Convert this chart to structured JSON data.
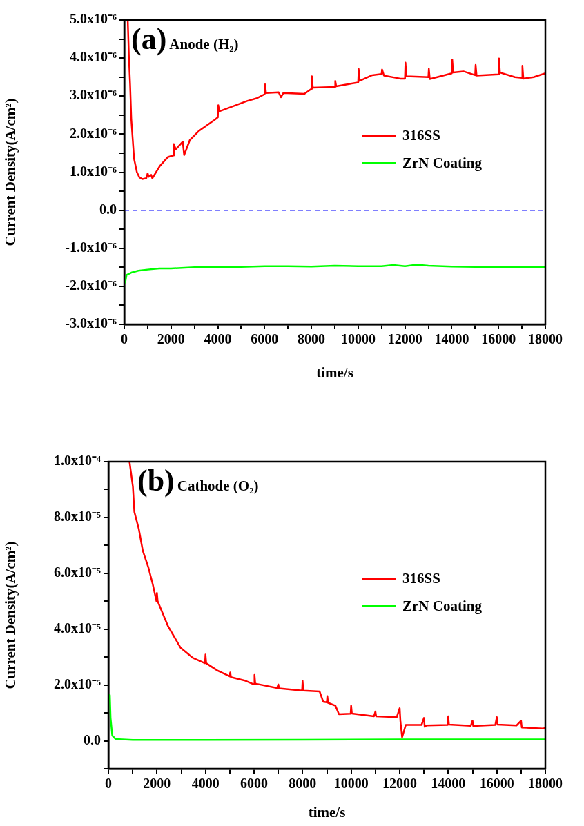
{
  "chart_data": [
    {
      "type": "line",
      "xlabel": "time/s",
      "ylabel": "Current Density(A/cm²)",
      "annotations": [
        "(a)",
        "Anode (H₂)"
      ],
      "xlim": [
        0,
        18000
      ],
      "ylim": [
        -3e-06,
        5e-06
      ],
      "xticks": [
        0,
        {
          "value": 1000,
          "label": null
        },
        2000,
        {
          "value": 3000,
          "label": null
        },
        4000,
        {
          "value": 5000,
          "label": null
        },
        6000,
        {
          "value": 7000,
          "label": null
        },
        8000,
        {
          "value": 9000,
          "label": null
        },
        10000,
        {
          "value": 11000,
          "label": null
        },
        12000,
        {
          "value": 13000,
          "label": null
        },
        14000,
        {
          "value": 15000,
          "label": null
        },
        16000,
        {
          "value": 17000,
          "label": null
        },
        18000
      ],
      "yticks": [
        {
          "value": -3e-06,
          "label": "-3.0x10⁻⁶"
        },
        {
          "value": -2.5e-06,
          "label": null
        },
        {
          "value": -2e-06,
          "label": "-2.0x10⁻⁶"
        },
        {
          "value": -1.5e-06,
          "label": null
        },
        {
          "value": -1e-06,
          "label": "-1.0x10⁻⁶"
        },
        {
          "value": -5e-07,
          "label": null
        },
        {
          "value": 0,
          "label": "0.0"
        },
        {
          "value": 5e-07,
          "label": null
        },
        {
          "value": 1e-06,
          "label": "1.0x10⁻⁶"
        },
        {
          "value": 1.5e-06,
          "label": null
        },
        {
          "value": 2e-06,
          "label": "2.0x10⁻⁶"
        },
        {
          "value": 2.5e-06,
          "label": null
        },
        {
          "value": 3e-06,
          "label": "3.0x10⁻⁶"
        },
        {
          "value": 3.5e-06,
          "label": null
        },
        {
          "value": 4e-06,
          "label": "4.0x10⁻⁶"
        },
        {
          "value": 4.5e-06,
          "label": null
        },
        {
          "value": 5e-06,
          "label": "5.0x10⁻⁶"
        }
      ],
      "grid": false,
      "legend": "right",
      "marker": "none",
      "line_style": "solid",
      "ref_lines": [
        {
          "axis": "y",
          "value": 0,
          "color": "#0000ff",
          "line_style": "dashed"
        }
      ],
      "series": [
        {
          "name": "316SS",
          "color": "#ff0000",
          "x": [
            150,
            200,
            250,
            300,
            420,
            540,
            650,
            770,
            940,
            1000,
            1050,
            1150,
            1200,
            1520,
            1870,
            2100,
            2120,
            2200,
            2500,
            2560,
            2800,
            3200,
            3850,
            4000,
            4020,
            4060,
            5250,
            5650,
            6000,
            6020,
            6060,
            6600,
            6700,
            6800,
            7700,
            8000,
            8020,
            8060,
            9000,
            9020,
            9060,
            9900,
            10000,
            10020,
            10060,
            10600,
            11000,
            11020,
            11100,
            11800,
            12000,
            12020,
            12060,
            13000,
            13020,
            13060,
            14000,
            14020,
            14060,
            14500,
            15000,
            15020,
            15060,
            16000,
            16020,
            16060,
            16700,
            17000,
            17020,
            17060,
            17500,
            18000
          ],
          "values": [
            5e-06,
            4e-06,
            3.3e-06,
            2.4e-06,
            1.35e-06,
            1e-06,
            8.6e-07,
            8.2e-07,
            8.4e-07,
            9.7e-07,
            8.8e-07,
            9.3e-07,
            8.4e-07,
            1.16e-06,
            1.4e-06,
            1.44e-06,
            1.74e-06,
            1.6e-06,
            1.8e-06,
            1.45e-06,
            1.84e-06,
            2.09e-06,
            2.37e-06,
            2.44e-06,
            2.76e-06,
            2.6e-06,
            2.87e-06,
            2.94e-06,
            3.05e-06,
            3.31e-06,
            3.08e-06,
            3.1e-06,
            2.97e-06,
            3.08e-06,
            3.06e-06,
            3.19e-06,
            3.52e-06,
            3.22e-06,
            3.24e-06,
            3.4e-06,
            3.26e-06,
            3.35e-06,
            3.36e-06,
            3.71e-06,
            3.4e-06,
            3.55e-06,
            3.58e-06,
            3.7e-06,
            3.54e-06,
            3.46e-06,
            3.46e-06,
            3.88e-06,
            3.52e-06,
            3.5e-06,
            3.72e-06,
            3.45e-06,
            3.6e-06,
            3.96e-06,
            3.62e-06,
            3.65e-06,
            3.55e-06,
            3.82e-06,
            3.54e-06,
            3.57e-06,
            3.99e-06,
            3.62e-06,
            3.5e-06,
            3.48e-06,
            3.8e-06,
            3.46e-06,
            3.5e-06,
            3.6e-06
          ]
        },
        {
          "name": "ZrN Coating",
          "color": "#00ff00",
          "x": [
            40,
            100,
            300,
            600,
            1000,
            1500,
            2000,
            3000,
            4000,
            5000,
            6000,
            7000,
            8000,
            9000,
            10000,
            11000,
            11500,
            12000,
            12500,
            13000,
            14000,
            15000,
            16000,
            17000,
            18000
          ],
          "values": [
            -1.9e-06,
            -1.7e-06,
            -1.64e-06,
            -1.59e-06,
            -1.56e-06,
            -1.53e-06,
            -1.53e-06,
            -1.5e-06,
            -1.5e-06,
            -1.49e-06,
            -1.47e-06,
            -1.47e-06,
            -1.48e-06,
            -1.46e-06,
            -1.47e-06,
            -1.47e-06,
            -1.44e-06,
            -1.47e-06,
            -1.43e-06,
            -1.46e-06,
            -1.48e-06,
            -1.49e-06,
            -1.5e-06,
            -1.49e-06,
            -1.49e-06
          ]
        }
      ]
    },
    {
      "type": "line",
      "xlabel": "time/s",
      "ylabel": "Current Density(A/cm²)",
      "annotations": [
        "(b)",
        "Cathode (O₂)"
      ],
      "xlim": [
        0,
        18000
      ],
      "ylim": [
        -1e-05,
        0.0001
      ],
      "xticks": [
        0,
        {
          "value": 1000,
          "label": null
        },
        2000,
        {
          "value": 3000,
          "label": null
        },
        4000,
        {
          "value": 5000,
          "label": null
        },
        6000,
        {
          "value": 7000,
          "label": null
        },
        8000,
        {
          "value": 9000,
          "label": null
        },
        10000,
        {
          "value": 11000,
          "label": null
        },
        12000,
        {
          "value": 13000,
          "label": null
        },
        14000,
        {
          "value": 15000,
          "label": null
        },
        16000,
        {
          "value": 17000,
          "label": null
        },
        18000
      ],
      "yticks": [
        {
          "value": -1e-05,
          "label": null
        },
        {
          "value": 0,
          "label": "0.0"
        },
        {
          "value": 1e-05,
          "label": null
        },
        {
          "value": 2e-05,
          "label": "2.0x10⁻⁵"
        },
        {
          "value": 3e-05,
          "label": null
        },
        {
          "value": 4e-05,
          "label": "4.0x10⁻⁵"
        },
        {
          "value": 5e-05,
          "label": null
        },
        {
          "value": 6e-05,
          "label": "6.0x10⁻⁵"
        },
        {
          "value": 7e-05,
          "label": null
        },
        {
          "value": 8e-05,
          "label": "8.0x10⁻⁵"
        },
        {
          "value": 9e-05,
          "label": null
        },
        {
          "value": 0.0001,
          "label": "1.0x10⁻⁴"
        }
      ],
      "grid": false,
      "legend": "right",
      "marker": "none",
      "line_style": "solid",
      "series": [
        {
          "name": "316SS",
          "color": "#ff0000",
          "x": [
            870,
            1010,
            1070,
            1250,
            1420,
            1650,
            1830,
            1980,
            2000,
            2030,
            2460,
            2970,
            3480,
            3980,
            4000,
            4030,
            4490,
            5000,
            5020,
            5050,
            5650,
            6000,
            6020,
            6050,
            6950,
            7000,
            7030,
            7980,
            8000,
            8030,
            8700,
            8850,
            9000,
            9020,
            9050,
            9350,
            9500,
            9980,
            10000,
            10030,
            10940,
            11000,
            11030,
            11880,
            12000,
            12030,
            12100,
            12250,
            12900,
            13000,
            13030,
            13100,
            13980,
            14000,
            14030,
            14930,
            15000,
            15030,
            15940,
            16000,
            16030,
            16810,
            17000,
            17030,
            17900,
            18000
          ],
          "values": [
            0.0001,
            9.1e-05,
            8.2e-05,
            7.6e-05,
            6.8e-05,
            6.2e-05,
            5.6e-05,
            5e-05,
            5.3e-05,
            5e-05,
            4.1e-05,
            3.34e-05,
            2.97e-05,
            2.78e-05,
            3.09e-05,
            2.78e-05,
            2.52e-05,
            2.31e-05,
            2.45e-05,
            2.28e-05,
            2.15e-05,
            2.02e-05,
            2.36e-05,
            2.05e-05,
            1.89e-05,
            2.02e-05,
            1.88e-05,
            1.8e-05,
            2.15e-05,
            1.8e-05,
            1.77e-05,
            1.4e-05,
            1.38e-05,
            1.6e-05,
            1.36e-05,
            1.26e-05,
            9.5e-06,
            9.7e-06,
            1.26e-05,
            9.8e-06,
            8.8e-06,
            1.05e-05,
            8.8e-06,
            8.5e-06,
            1.17e-05,
            7e-06,
            1.3e-06,
            5.7e-06,
            5.7e-06,
            8.2e-06,
            5e-06,
            5.5e-06,
            5.7e-06,
            8.8e-06,
            5.8e-06,
            5.4e-06,
            7.2e-06,
            5.3e-06,
            5.7e-06,
            8.5e-06,
            5.8e-06,
            5.5e-06,
            7.2e-06,
            4.8e-06,
            4.4e-06,
            4.6e-06
          ]
        },
        {
          "name": "ZrN Coating",
          "color": "#00ff00",
          "x": [
            60,
            90,
            160,
            300,
            1000,
            4000,
            8000,
            12000,
            18000
          ],
          "values": [
            1.64e-05,
            8.2e-06,
            1.9e-06,
            6e-07,
            3e-07,
            3e-07,
            4e-07,
            5e-07,
            5e-07
          ]
        }
      ]
    }
  ]
}
